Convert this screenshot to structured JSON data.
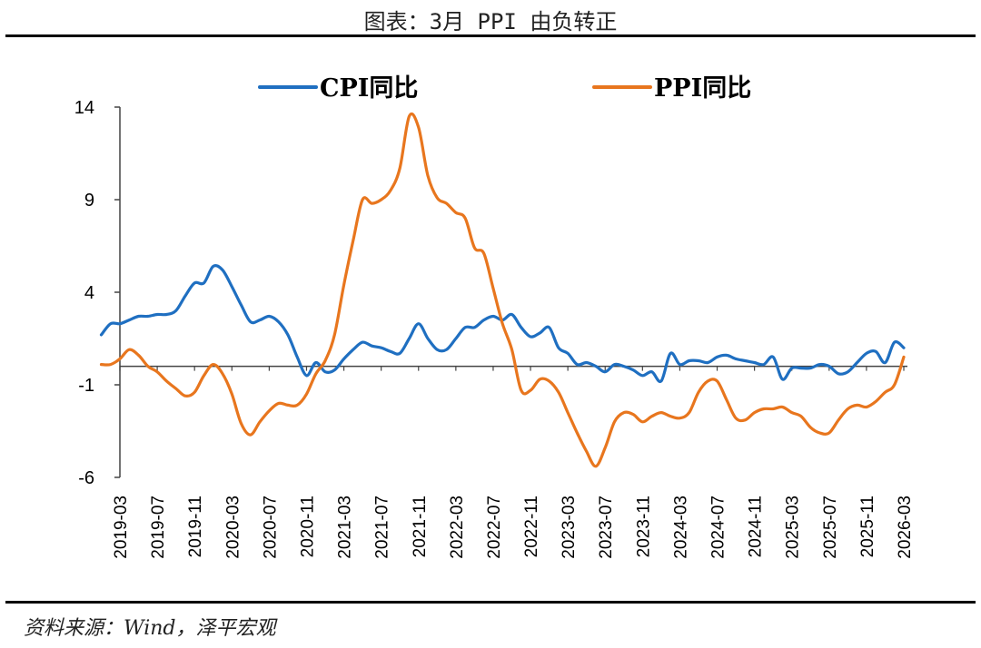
{
  "header": {
    "title": "图表：3月 PPI 由负转正"
  },
  "footer": {
    "source": "资料来源：Wind，泽平宏观"
  },
  "colors": {
    "cpi": "#1f6fc1",
    "ppi": "#e8761e",
    "axis": "#444444"
  },
  "chart_data": {
    "type": "line",
    "title": "图表：3月 PPI 由负转正",
    "xlabel": "",
    "ylabel": "",
    "ylim": [
      -6,
      14
    ],
    "yticks": [
      14,
      9,
      4,
      -1,
      -6
    ],
    "grid": false,
    "legend_position": "top",
    "x_tick_labels": [
      "2019-03",
      "2019-07",
      "2019-11",
      "2020-03",
      "2020-07",
      "2020-11",
      "2021-03",
      "2021-07",
      "2021-11",
      "2022-03",
      "2022-07",
      "2022-11",
      "2023-03",
      "2023-07",
      "2023-11",
      "2024-03",
      "2024-07",
      "2024-11",
      "2025-03",
      "2025-07",
      "2025-11",
      "2026-03"
    ],
    "x_start": "2019-01",
    "series": [
      {
        "name": "CPI同比",
        "values": [
          1.7,
          2.3,
          2.3,
          2.5,
          2.7,
          2.7,
          2.8,
          2.8,
          3.0,
          3.8,
          4.5,
          4.5,
          5.4,
          5.2,
          4.3,
          3.3,
          2.4,
          2.5,
          2.7,
          2.4,
          1.7,
          0.5,
          -0.5,
          0.2,
          -0.3,
          -0.2,
          0.4,
          0.9,
          1.3,
          1.1,
          1.0,
          0.8,
          0.7,
          1.5,
          2.3,
          1.5,
          0.9,
          0.9,
          1.5,
          2.1,
          2.1,
          2.5,
          2.7,
          2.5,
          2.8,
          2.1,
          1.6,
          1.8,
          2.1,
          1.0,
          0.7,
          0.1,
          0.2,
          0.0,
          -0.3,
          0.1,
          0.0,
          -0.2,
          -0.5,
          -0.3,
          -0.8,
          0.7,
          0.1,
          0.3,
          0.3,
          0.2,
          0.5,
          0.6,
          0.4,
          0.3,
          0.2,
          0.1,
          0.5,
          -0.7,
          -0.1,
          -0.1,
          -0.1,
          0.1,
          0.0,
          -0.4,
          -0.3,
          0.2,
          0.7,
          0.8,
          0.2,
          1.3,
          1.0
        ]
      },
      {
        "name": "PPI同比",
        "values": [
          0.1,
          0.1,
          0.4,
          0.9,
          0.6,
          0.0,
          -0.3,
          -0.8,
          -1.2,
          -1.6,
          -1.4,
          -0.5,
          0.1,
          -0.4,
          -1.5,
          -3.1,
          -3.7,
          -3.0,
          -2.4,
          -2.0,
          -2.1,
          -2.1,
          -1.5,
          -0.4,
          0.3,
          1.7,
          4.4,
          6.8,
          9.0,
          8.8,
          9.0,
          9.5,
          10.7,
          13.5,
          12.9,
          10.3,
          9.1,
          8.8,
          8.3,
          8.0,
          6.4,
          6.1,
          4.2,
          2.3,
          0.9,
          -1.3,
          -1.3,
          -0.7,
          -0.8,
          -1.4,
          -2.5,
          -3.6,
          -4.6,
          -5.4,
          -4.4,
          -3.0,
          -2.5,
          -2.6,
          -3.0,
          -2.7,
          -2.5,
          -2.7,
          -2.8,
          -2.5,
          -1.4,
          -0.8,
          -0.8,
          -1.8,
          -2.8,
          -2.9,
          -2.5,
          -2.3,
          -2.3,
          -2.2,
          -2.5,
          -2.7,
          -3.3,
          -3.6,
          -3.6,
          -2.9,
          -2.3,
          -2.1,
          -2.2,
          -1.9,
          -1.4,
          -1.0,
          0.5
        ]
      }
    ]
  }
}
